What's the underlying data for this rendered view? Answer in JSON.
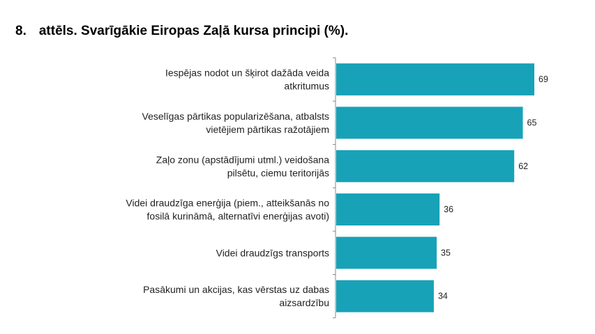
{
  "chart_data": {
    "type": "bar",
    "orientation": "horizontal",
    "title_number": "8.",
    "title": "attēls. Svarīgākie Eiropas Zaļā kursa principi (%).",
    "categories": [
      [
        "Iespējas nodot un šķirot dažāda veida",
        "atkritumus"
      ],
      [
        "Veselīgas pārtikas popularizēšana, atbalsts",
        "vietējiem pārtikas ražotājiem"
      ],
      [
        "Zaļo zonu (apstādījumi utml.) veidošana",
        "pilsētu, ciemu teritorijās"
      ],
      [
        "Videi draudzīga enerģija (piem., atteikšanās no",
        "fosilā kurināmā, alternatīvi enerģijas avoti)"
      ],
      [
        "Videi draudzīgs transports"
      ],
      [
        "Pasākumi un akcijas, kas vērstas uz dabas",
        "aizsardzību"
      ]
    ],
    "values": [
      69,
      65,
      62,
      36,
      35,
      34
    ],
    "xlim": [
      0,
      100
    ],
    "bar_color": "#17a2b8",
    "grid": false
  }
}
